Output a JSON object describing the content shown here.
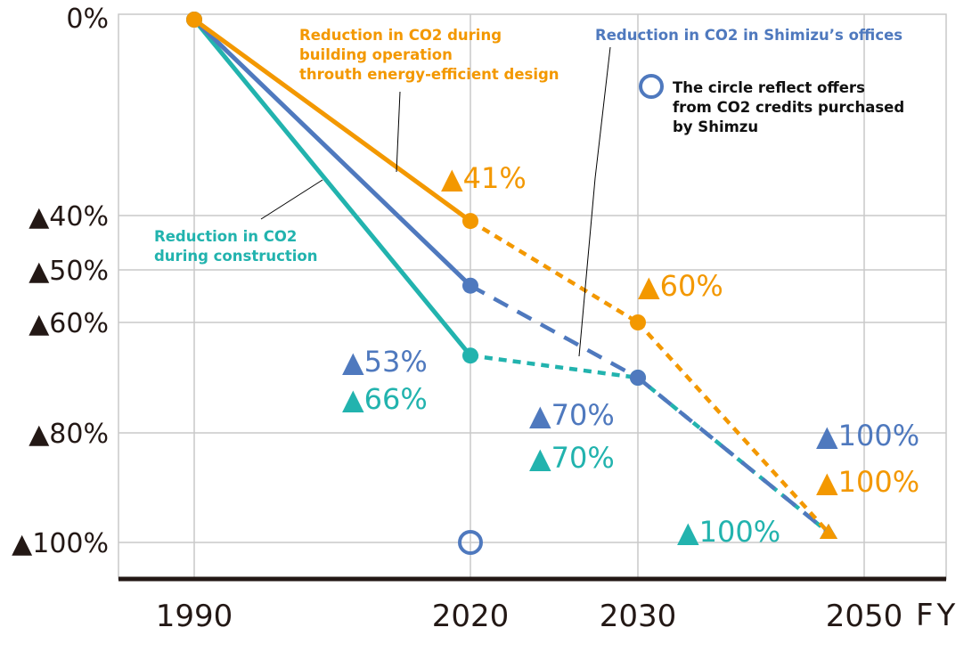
{
  "chart_data": {
    "type": "line",
    "xlabel": "FY",
    "x_ticks": [
      "1990",
      "2020",
      "2030",
      "2050"
    ],
    "y_ticks": [
      "0%",
      "▲40%",
      "▲50%",
      "▲60%",
      "▲80%",
      "▲100%"
    ],
    "y_tick_values": [
      0,
      -40,
      -50,
      -60,
      -80,
      -100
    ],
    "ylim": [
      -100,
      0
    ],
    "grid": true,
    "series": [
      {
        "name": "Reduction in CO2 during building operation throuth energy-efficient design",
        "label_lines": [
          "Reduction in CO2 during",
          "building operation",
          "throuth energy-efficient design"
        ],
        "color": "#f39800",
        "x": [
          1990,
          2020,
          2030,
          2050
        ],
        "y": [
          0,
          -41,
          -60,
          -100
        ],
        "value_labels": [
          "",
          "▲41%",
          "▲60%",
          "▲100%"
        ],
        "line_style": [
          "solid",
          "dotted",
          "dotted"
        ]
      },
      {
        "name": "Reduction in CO2 in Shimizu’s offices",
        "label_lines": [
          "Reduction in CO2 in Shimizu’s offices"
        ],
        "color": "#4f79be",
        "x": [
          1990,
          2020,
          2030,
          2050
        ],
        "y": [
          0,
          -53,
          -70,
          -100
        ],
        "value_labels": [
          "",
          "▲53%",
          "▲70%",
          "▲100%"
        ],
        "line_style": [
          "solid",
          "dashed",
          "dashed"
        ]
      },
      {
        "name": "Reduction in CO2 during construction",
        "label_lines": [
          "Reduction in CO2",
          "during construction"
        ],
        "color": "#22b3ae",
        "x": [
          1990,
          2020,
          2030,
          2050
        ],
        "y": [
          0,
          -66,
          -70,
          -100
        ],
        "value_labels": [
          "",
          "▲66%",
          "▲70%",
          "▲100%"
        ],
        "line_style": [
          "solid",
          "dotted",
          "dotted"
        ]
      }
    ],
    "credit_marker": {
      "x": 2020,
      "y": -100,
      "color": "#4f79be",
      "legend_lines": [
        "The circle reflect offers",
        "from CO2 credits purchased",
        "by Shimzu"
      ]
    }
  }
}
